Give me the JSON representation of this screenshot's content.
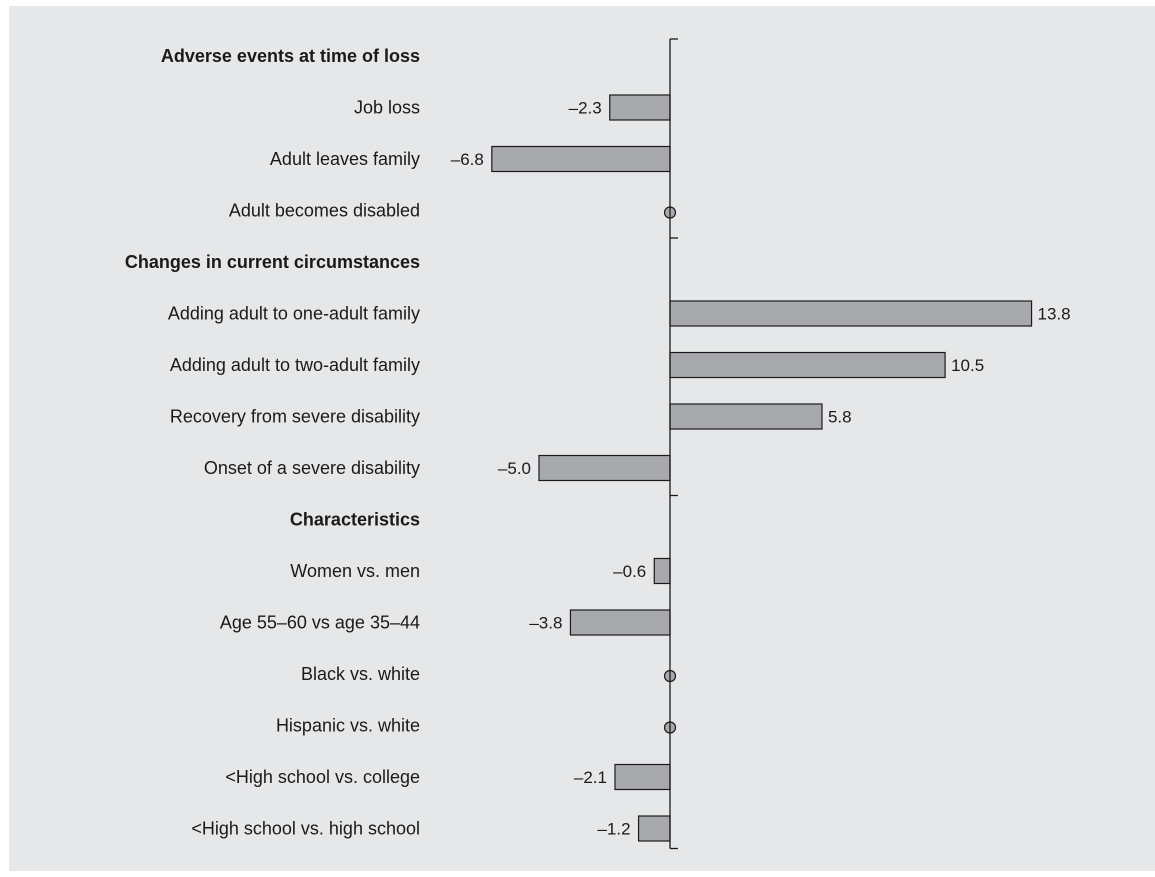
{
  "chart_data": {
    "type": "bar",
    "orientation": "horizontal",
    "title": "",
    "xlabel": "",
    "ylabel": "",
    "xlim": [
      -13.8,
      13.8
    ],
    "grid": false,
    "legend": "none",
    "bar_color": "#a7a9ac",
    "marker_color": "#a7a9ac",
    "background_color": "#e6e7e8",
    "rows": [
      {
        "kind": "header",
        "label": "Adverse events at time of loss"
      },
      {
        "kind": "bar",
        "label": "Job loss",
        "value": -2.3,
        "value_label": "–2.3"
      },
      {
        "kind": "bar",
        "label": "Adult leaves family",
        "value": -6.8,
        "value_label": "–6.8"
      },
      {
        "kind": "marker",
        "label": "Adult becomes disabled",
        "value": 0,
        "value_label": ""
      },
      {
        "kind": "header",
        "label": "Changes in current circumstances"
      },
      {
        "kind": "bar",
        "label": "Adding adult to one-adult family",
        "value": 13.8,
        "value_label": "13.8"
      },
      {
        "kind": "bar",
        "label": "Adding adult to two-adult family",
        "value": 10.5,
        "value_label": "10.5"
      },
      {
        "kind": "bar",
        "label": "Recovery from severe disability",
        "value": 5.8,
        "value_label": "5.8"
      },
      {
        "kind": "bar",
        "label": "Onset of a severe disability",
        "value": -5.0,
        "value_label": "–5.0"
      },
      {
        "kind": "header",
        "label": "Characteristics"
      },
      {
        "kind": "bar",
        "label": "Women vs. men",
        "value": -0.6,
        "value_label": "–0.6"
      },
      {
        "kind": "bar",
        "label": "Age 55–60 vs age 35–44",
        "value": -3.8,
        "value_label": "–3.8"
      },
      {
        "kind": "marker",
        "label": "Black vs. white",
        "value": 0,
        "value_label": ""
      },
      {
        "kind": "marker",
        "label": "Hispanic vs. white",
        "value": 0,
        "value_label": ""
      },
      {
        "kind": "bar",
        "label": "<High school vs. college",
        "value": -2.1,
        "value_label": "–2.1"
      },
      {
        "kind": "bar",
        "label": "<High school vs. high school",
        "value": -1.2,
        "value_label": "–1.2"
      }
    ]
  }
}
